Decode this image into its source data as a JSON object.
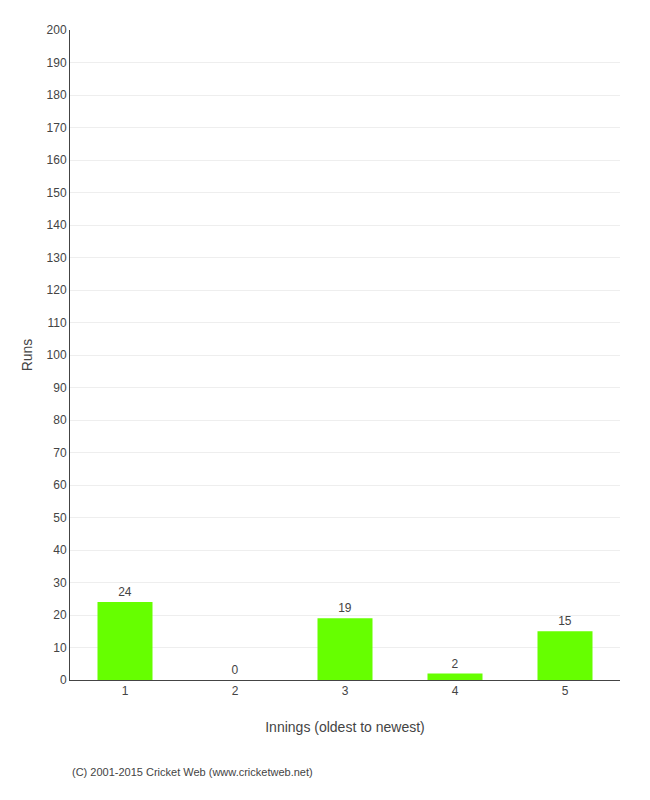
{
  "chart_data": {
    "type": "bar",
    "xlabel": "Innings (oldest to newest)",
    "ylabel": "Runs",
    "footer": "(C) 2001-2015 Cricket Web (www.cricketweb.net)",
    "categories": [
      1,
      2,
      3,
      4,
      5
    ],
    "values": [
      24,
      0,
      19,
      2,
      15
    ],
    "color": "#66ff00",
    "ylim": [
      0,
      200
    ],
    "yticks": [
      0,
      10,
      20,
      30,
      40,
      50,
      60,
      70,
      80,
      90,
      100,
      110,
      120,
      130,
      140,
      150,
      160,
      170,
      180,
      190,
      200
    ],
    "grid": true,
    "data_labels": true
  }
}
